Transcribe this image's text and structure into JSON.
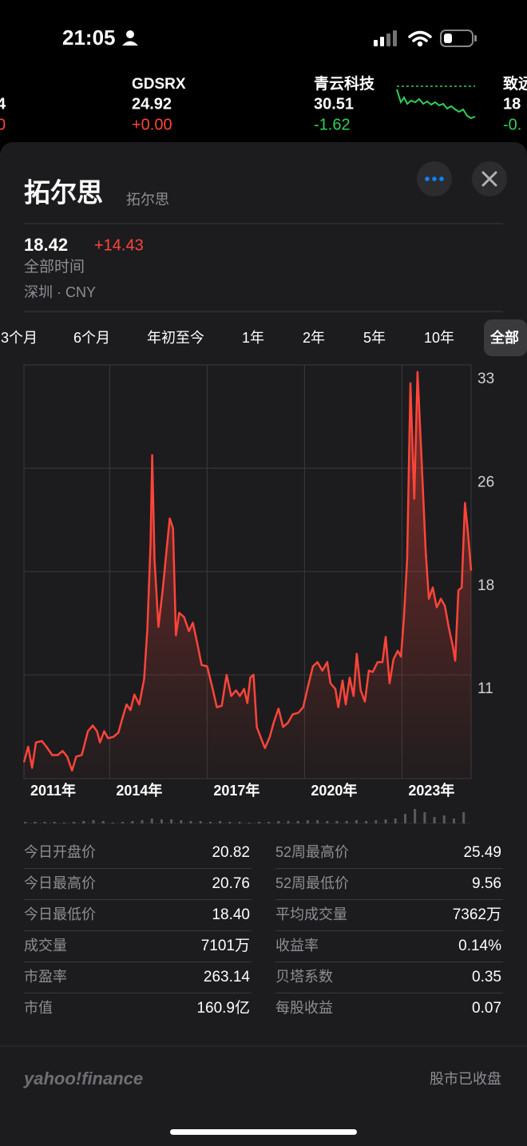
{
  "status": {
    "time": "21:05"
  },
  "ticker": [
    {
      "price": "4",
      "change": "0",
      "color": "#ff453a"
    },
    {
      "symbol": "GDSRX",
      "price": "24.92",
      "change": "+0.00",
      "color": "#ff453a"
    },
    {
      "symbol": "青云科技",
      "price": "30.51",
      "change": "-1.62",
      "color": "#30d158"
    },
    {
      "symbol": "致远",
      "price": "18",
      "change": "-0.",
      "color": "#30d158"
    }
  ],
  "header": {
    "title": "拓尔思",
    "subtitle": "拓尔思",
    "price": "18.42",
    "change": "+14.43",
    "change_color": "#ff453a",
    "period": "全部时间",
    "exchange": "深圳 · CNY"
  },
  "ranges": {
    "items": [
      "3个月",
      "6个月",
      "年初至今",
      "1年",
      "2年",
      "5年",
      "10年",
      "全部"
    ],
    "selected": 7
  },
  "chart_data": [
    {
      "type": "line",
      "color": "#ff453a",
      "grid": true,
      "x": [
        2011.36,
        2011.49,
        2011.61,
        2011.73,
        2011.91,
        2012.05,
        2012.23,
        2012.4,
        2012.55,
        2012.69,
        2012.84,
        2012.97,
        2013.14,
        2013.33,
        2013.48,
        2013.61,
        2013.7,
        2013.83,
        2013.95,
        2014.12,
        2014.27,
        2014.39,
        2014.52,
        2014.64,
        2014.76,
        2014.91,
        2015.06,
        2015.16,
        2015.26,
        2015.31,
        2015.38,
        2015.5,
        2015.63,
        2015.75,
        2015.85,
        2015.95,
        2016.04,
        2016.14,
        2016.29,
        2016.44,
        2016.56,
        2016.69,
        2016.83,
        2017.0,
        2017.15,
        2017.3,
        2017.45,
        2017.6,
        2017.74,
        2017.89,
        2018.01,
        2018.14,
        2018.24,
        2018.33,
        2018.43,
        2018.53,
        2018.66,
        2018.78,
        2018.93,
        2019.05,
        2019.2,
        2019.34,
        2019.49,
        2019.64,
        2019.81,
        2019.96,
        2020.11,
        2020.26,
        2020.4,
        2020.55,
        2020.7,
        2020.8,
        2020.95,
        2021.04,
        2021.17,
        2021.27,
        2021.39,
        2021.51,
        2021.61,
        2021.73,
        2021.86,
        2021.98,
        2022.1,
        2022.25,
        2022.4,
        2022.5,
        2022.62,
        2022.74,
        2022.87,
        2022.97,
        2023.06,
        2023.16,
        2023.26,
        2023.38,
        2023.48,
        2023.61,
        2023.73,
        2023.83,
        2023.95,
        2024.07,
        2024.2,
        2024.32,
        2024.44,
        2024.57,
        2024.64,
        2024.74,
        2024.84,
        2024.94,
        2025.03,
        2025.13
      ],
      "values": [
        4.8,
        5.9,
        4.4,
        6.2,
        6.3,
        5.9,
        5.3,
        5.3,
        5.6,
        5.2,
        4.2,
        5.2,
        5.3,
        7.0,
        7.4,
        7.0,
        6.2,
        7.0,
        6.5,
        6.6,
        6.9,
        7.9,
        8.9,
        8.5,
        9.6,
        8.9,
        10.7,
        14.2,
        20.4,
        26.6,
        19.2,
        14.4,
        17.0,
        19.8,
        22.1,
        21.4,
        13.8,
        15.4,
        15.1,
        14.1,
        14.7,
        13.3,
        11.7,
        11.6,
        10.2,
        8.7,
        8.8,
        11.0,
        9.5,
        9.9,
        9.5,
        10.0,
        9.0,
        10.8,
        11.0,
        7.3,
        6.5,
        5.8,
        6.6,
        7.6,
        8.6,
        7.3,
        7.6,
        8.2,
        8.3,
        8.7,
        10.2,
        11.6,
        11.9,
        11.3,
        11.9,
        10.4,
        10.0,
        8.7,
        10.6,
        8.9,
        10.8,
        9.5,
        12.5,
        9.9,
        9.1,
        11.3,
        11.2,
        11.9,
        11.9,
        13.7,
        10.4,
        12.1,
        12.7,
        12.3,
        15.0,
        19.2,
        31.7,
        23.5,
        32.5,
        26.0,
        19.8,
        16.4,
        17.2,
        15.8,
        16.4,
        15.9,
        14.4,
        13.0,
        12.0,
        17.0,
        17.2,
        23.2,
        21.2,
        18.4
      ],
      "xlim": [
        2011.36,
        2025.13
      ],
      "ylim": [
        3.63,
        33
      ],
      "xticks": [
        {
          "value": 2011.36,
          "label": "2011年"
        },
        {
          "value": 2014,
          "label": "2014年"
        },
        {
          "value": 2017,
          "label": "2017年"
        },
        {
          "value": 2020,
          "label": "2020年"
        },
        {
          "value": 2023,
          "label": "2023年"
        }
      ],
      "yticks": [
        {
          "value": 11,
          "label": "11"
        },
        {
          "value": 18.33,
          "label": "18"
        },
        {
          "value": 25.67,
          "label": "26"
        },
        {
          "value": 33,
          "label": "33"
        }
      ]
    },
    {
      "type": "bar",
      "color": "#5a5a5e",
      "x": [
        2011.4,
        2011.7,
        2012.0,
        2012.3,
        2012.6,
        2012.9,
        2013.2,
        2013.5,
        2013.8,
        2014.1,
        2014.4,
        2014.7,
        2015.0,
        2015.3,
        2015.6,
        2015.9,
        2016.2,
        2016.5,
        2016.8,
        2017.1,
        2017.4,
        2017.7,
        2018.0,
        2018.3,
        2018.6,
        2018.9,
        2019.2,
        2019.5,
        2019.8,
        2020.1,
        2020.4,
        2020.7,
        2021.0,
        2021.3,
        2021.6,
        2021.9,
        2022.2,
        2022.5,
        2022.8,
        2023.1,
        2023.4,
        2023.7,
        2024.0,
        2024.3,
        2024.6,
        2024.9
      ],
      "values": [
        2,
        2,
        2,
        2,
        1,
        2,
        3,
        4,
        3,
        1,
        2,
        3,
        4,
        6,
        5,
        5,
        4,
        3,
        3,
        2,
        3,
        2,
        2,
        1,
        2,
        2,
        3,
        3,
        3,
        4,
        4,
        3,
        3,
        3,
        4,
        3,
        4,
        5,
        6,
        12,
        18,
        14,
        8,
        10,
        6,
        14
      ],
      "xlim": [
        2011.36,
        2025.13
      ],
      "ylim": [
        0,
        20
      ]
    }
  ],
  "stats": {
    "left": [
      {
        "label": "今日开盘价",
        "value": "20.82"
      },
      {
        "label": "今日最高价",
        "value": "20.76"
      },
      {
        "label": "今日最低价",
        "value": "18.40"
      },
      {
        "label": "成交量",
        "value": "7101万"
      },
      {
        "label": "市盈率",
        "value": "263.14"
      },
      {
        "label": "市值",
        "value": "160.9亿"
      }
    ],
    "right": [
      {
        "label": "52周最高价",
        "value": "25.49"
      },
      {
        "label": "52周最低价",
        "value": "9.56"
      },
      {
        "label": "平均成交量",
        "value": "7362万"
      },
      {
        "label": "收益率",
        "value": "0.14%"
      },
      {
        "label": "贝塔系数",
        "value": "0.35"
      },
      {
        "label": "每股收益",
        "value": "0.07"
      }
    ]
  },
  "footer": {
    "logo": "yahoo!finance",
    "market_status": "股市已收盘"
  }
}
